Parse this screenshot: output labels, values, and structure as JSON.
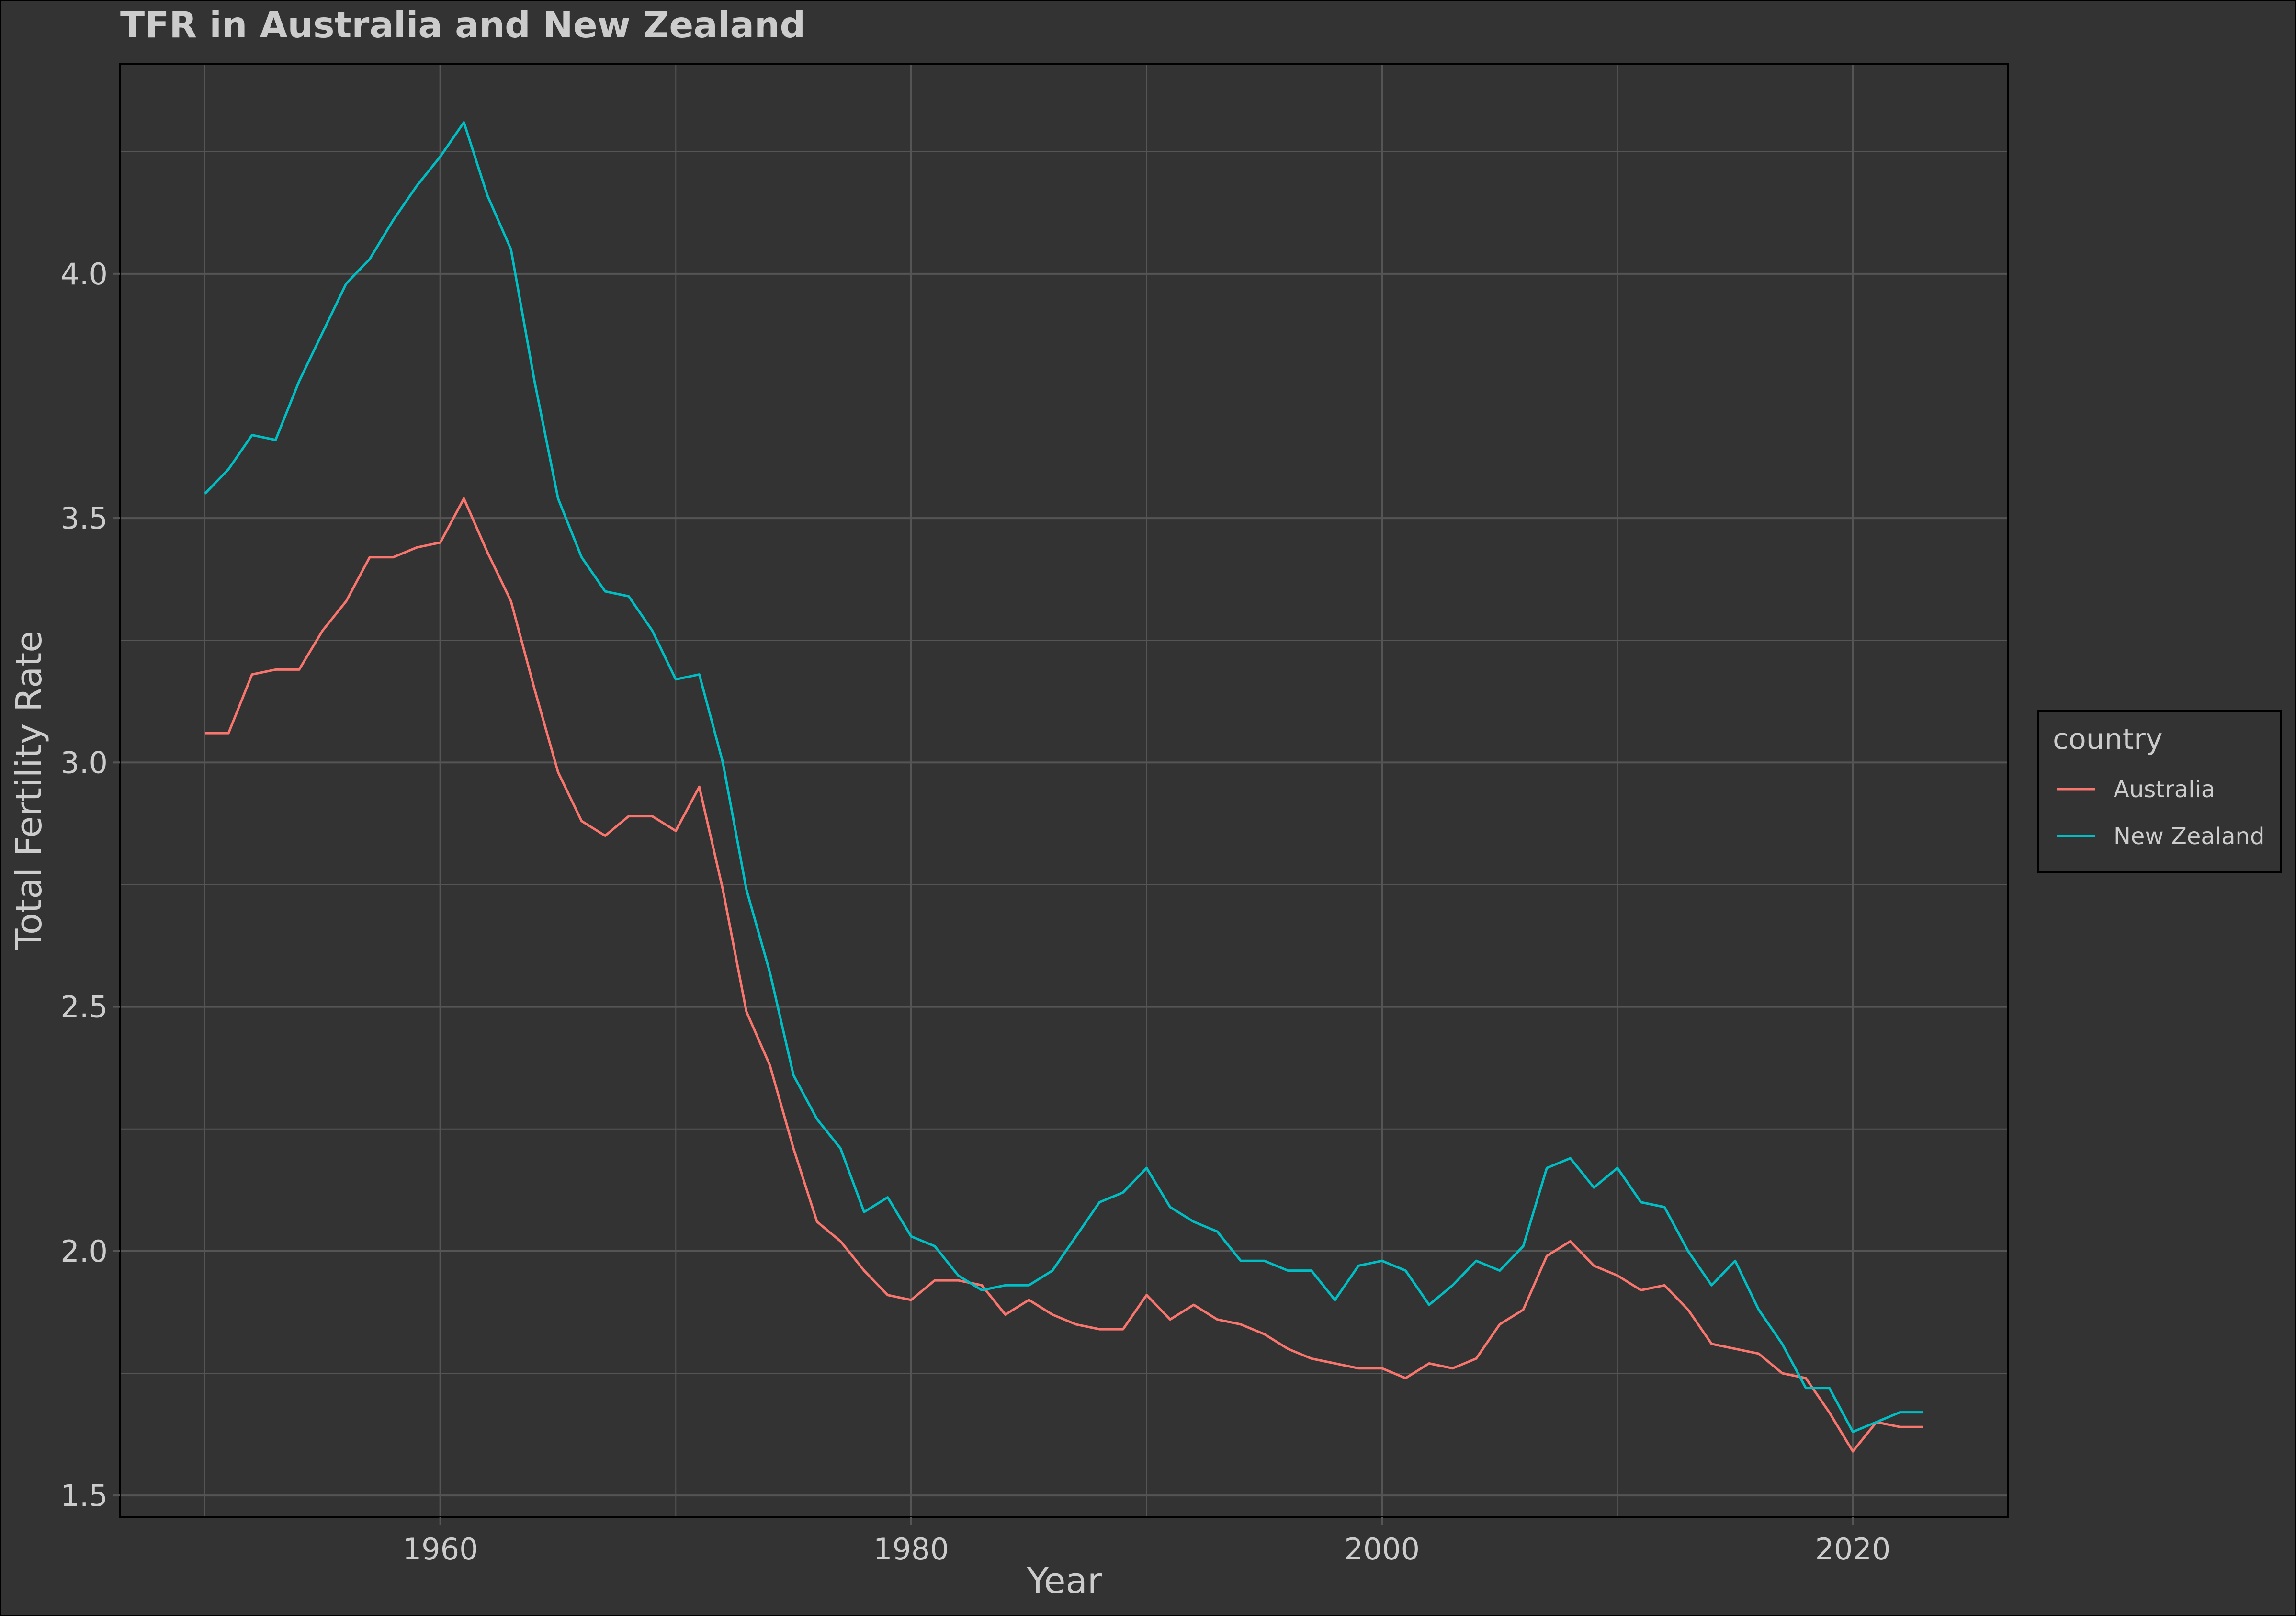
{
  "chart_data": {
    "type": "line",
    "title": "TFR in Australia and New Zealand",
    "xlabel": "Year",
    "ylabel": "Total Fertility Rate",
    "xlim": [
      1946.4,
      2026.6
    ],
    "ylim": [
      1.455,
      4.43
    ],
    "x_ticks": [
      1960,
      1980,
      2000,
      2020
    ],
    "x_tick_labels": [
      "1960",
      "1980",
      "2000",
      "2020"
    ],
    "y_ticks": [
      1.5,
      2.0,
      2.5,
      3.0,
      3.5,
      4.0
    ],
    "y_tick_labels": [
      "1.5",
      "2.0",
      "2.5",
      "3.0",
      "3.5",
      "4.0"
    ],
    "grid": true,
    "legend": {
      "title": "country",
      "position": "right"
    },
    "x": [
      1950,
      1951,
      1952,
      1953,
      1954,
      1955,
      1956,
      1957,
      1958,
      1959,
      1960,
      1961,
      1962,
      1963,
      1964,
      1965,
      1966,
      1967,
      1968,
      1969,
      1970,
      1971,
      1972,
      1973,
      1974,
      1975,
      1976,
      1977,
      1978,
      1979,
      1980,
      1981,
      1982,
      1983,
      1984,
      1985,
      1986,
      1987,
      1988,
      1989,
      1990,
      1991,
      1992,
      1993,
      1994,
      1995,
      1996,
      1997,
      1998,
      1999,
      2000,
      2001,
      2002,
      2003,
      2004,
      2005,
      2006,
      2007,
      2008,
      2009,
      2010,
      2011,
      2012,
      2013,
      2014,
      2015,
      2016,
      2017,
      2018,
      2019,
      2020,
      2021,
      2022,
      2023
    ],
    "series": [
      {
        "name": "Australia",
        "color": "#F8766D",
        "values": [
          3.06,
          3.06,
          3.18,
          3.19,
          3.19,
          3.27,
          3.33,
          3.42,
          3.42,
          3.44,
          3.45,
          3.54,
          3.43,
          3.33,
          3.15,
          2.98,
          2.88,
          2.85,
          2.89,
          2.89,
          2.86,
          2.95,
          2.74,
          2.49,
          2.38,
          2.21,
          2.06,
          2.02,
          1.96,
          1.91,
          1.9,
          1.94,
          1.94,
          1.93,
          1.87,
          1.9,
          1.87,
          1.85,
          1.84,
          1.84,
          1.91,
          1.86,
          1.89,
          1.86,
          1.85,
          1.83,
          1.8,
          1.78,
          1.77,
          1.76,
          1.76,
          1.74,
          1.77,
          1.76,
          1.78,
          1.85,
          1.88,
          1.99,
          2.02,
          1.97,
          1.95,
          1.92,
          1.93,
          1.88,
          1.81,
          1.8,
          1.79,
          1.75,
          1.74,
          1.67,
          1.59,
          1.65,
          1.64,
          1.64
        ]
      },
      {
        "name": "New Zealand",
        "color": "#00BFC4",
        "values": [
          3.55,
          3.6,
          3.67,
          3.66,
          3.78,
          3.88,
          3.98,
          4.03,
          4.11,
          4.18,
          4.24,
          4.31,
          4.16,
          4.05,
          3.78,
          3.54,
          3.42,
          3.35,
          3.34,
          3.27,
          3.17,
          3.18,
          3.0,
          2.74,
          2.57,
          2.36,
          2.27,
          2.21,
          2.08,
          2.11,
          2.03,
          2.01,
          1.95,
          1.92,
          1.93,
          1.93,
          1.96,
          2.03,
          2.1,
          2.12,
          2.17,
          2.09,
          2.06,
          2.04,
          1.98,
          1.98,
          1.96,
          1.96,
          1.9,
          1.97,
          1.98,
          1.96,
          1.89,
          1.93,
          1.98,
          1.96,
          2.01,
          2.17,
          2.19,
          2.13,
          2.17,
          2.1,
          2.09,
          2.0,
          1.93,
          1.98,
          1.88,
          1.81,
          1.72,
          1.72,
          1.63,
          1.65,
          1.67,
          1.67
        ]
      }
    ]
  },
  "colors": {
    "background": "#333333",
    "grid": "#555555",
    "text": "#cccccc",
    "border": "#000000"
  }
}
